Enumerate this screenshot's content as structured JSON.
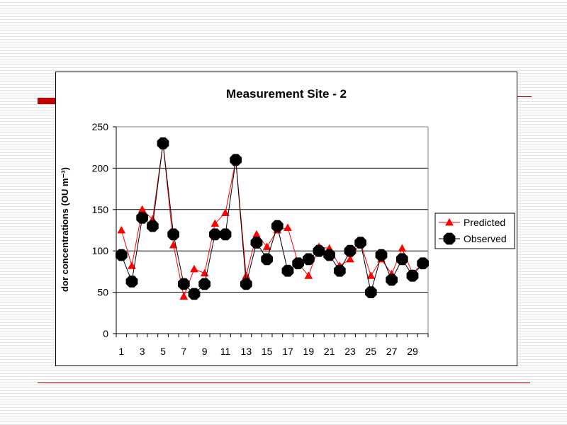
{
  "slide": {
    "accent_color": "#c00000"
  },
  "chart_data": {
    "type": "line",
    "title": "Measurement Site - 2",
    "ylabel": "dor concentrations (OU m⁻³)",
    "xlabel": "",
    "x": [
      1,
      2,
      3,
      4,
      5,
      6,
      7,
      8,
      9,
      10,
      11,
      12,
      13,
      14,
      15,
      16,
      17,
      18,
      19,
      20,
      21,
      22,
      23,
      24,
      25,
      26,
      27,
      28,
      29,
      30
    ],
    "x_tick_labels": [
      "1",
      "3",
      "5",
      "7",
      "9",
      "11",
      "13",
      "15",
      "17",
      "19",
      "21",
      "23",
      "25",
      "27",
      "29"
    ],
    "y_ticks": [
      0,
      50,
      100,
      150,
      200,
      250
    ],
    "ylim": [
      0,
      250
    ],
    "grid": "horizontal",
    "legend_position": "right",
    "series": [
      {
        "name": "Predicted",
        "color": "#ff0000",
        "marker": "triangle",
        "values": [
          125,
          82,
          150,
          138,
          230,
          107,
          45,
          78,
          73,
          133,
          146,
          210,
          70,
          120,
          105,
          125,
          128,
          85,
          70,
          105,
          103,
          82,
          90,
          110,
          70,
          90,
          72,
          103,
          73,
          85
        ]
      },
      {
        "name": "Observed",
        "color": "#000000",
        "marker": "octagon",
        "values": [
          95,
          63,
          140,
          130,
          230,
          120,
          60,
          48,
          60,
          120,
          120,
          210,
          60,
          110,
          90,
          130,
          76,
          85,
          90,
          100,
          95,
          76,
          100,
          110,
          50,
          95,
          65,
          90,
          70,
          85
        ]
      }
    ]
  }
}
